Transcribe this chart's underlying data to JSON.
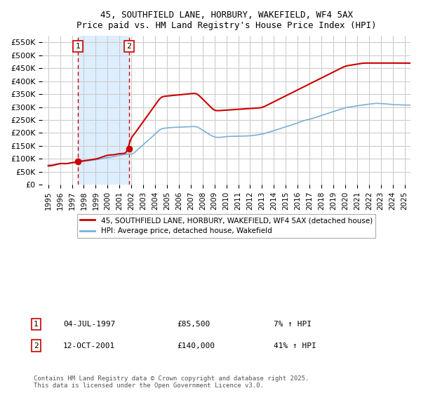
{
  "title": "45, SOUTHFIELD LANE, HORBURY, WAKEFIELD, WF4 5AX",
  "subtitle": "Price paid vs. HM Land Registry's House Price Index (HPI)",
  "background_color": "#ffffff",
  "plot_bg_color": "#ffffff",
  "grid_color": "#cccccc",
  "sale1_date_num": 1997.5,
  "sale1_label": "1",
  "sale1_date_str": "04-JUL-1997",
  "sale1_price": "£85,500",
  "sale1_hpi": "7% ↑ HPI",
  "sale2_date_num": 2001.79,
  "sale2_label": "2",
  "sale2_date_str": "12-OCT-2001",
  "sale2_price": "£140,000",
  "sale2_hpi": "41% ↑ HPI",
  "red_line_color": "#cc0000",
  "blue_line_color": "#7ab0d4",
  "shade_color": "#ddeeff",
  "dashed_line_color": "#cc0000",
  "marker_color": "#cc0000",
  "legend1_label": "45, SOUTHFIELD LANE, HORBURY, WAKEFIELD, WF4 5AX (detached house)",
  "legend2_label": "HPI: Average price, detached house, Wakefield",
  "footer": "Contains HM Land Registry data © Crown copyright and database right 2025.\nThis data is licensed under the Open Government Licence v3.0.",
  "ylim": [
    0,
    575000
  ],
  "xlim": [
    1994.5,
    2025.5
  ],
  "yticks": [
    0,
    50000,
    100000,
    150000,
    200000,
    250000,
    300000,
    350000,
    400000,
    450000,
    500000,
    550000
  ],
  "ytick_labels": [
    "£0",
    "£50K",
    "£100K",
    "£150K",
    "£200K",
    "£250K",
    "£300K",
    "£350K",
    "£400K",
    "£450K",
    "£500K",
    "£550K"
  ],
  "xticks": [
    1995,
    1996,
    1997,
    1998,
    1999,
    2000,
    2001,
    2002,
    2003,
    2004,
    2005,
    2006,
    2007,
    2008,
    2009,
    2010,
    2011,
    2012,
    2013,
    2014,
    2015,
    2016,
    2017,
    2018,
    2019,
    2020,
    2021,
    2022,
    2023,
    2024,
    2025
  ]
}
